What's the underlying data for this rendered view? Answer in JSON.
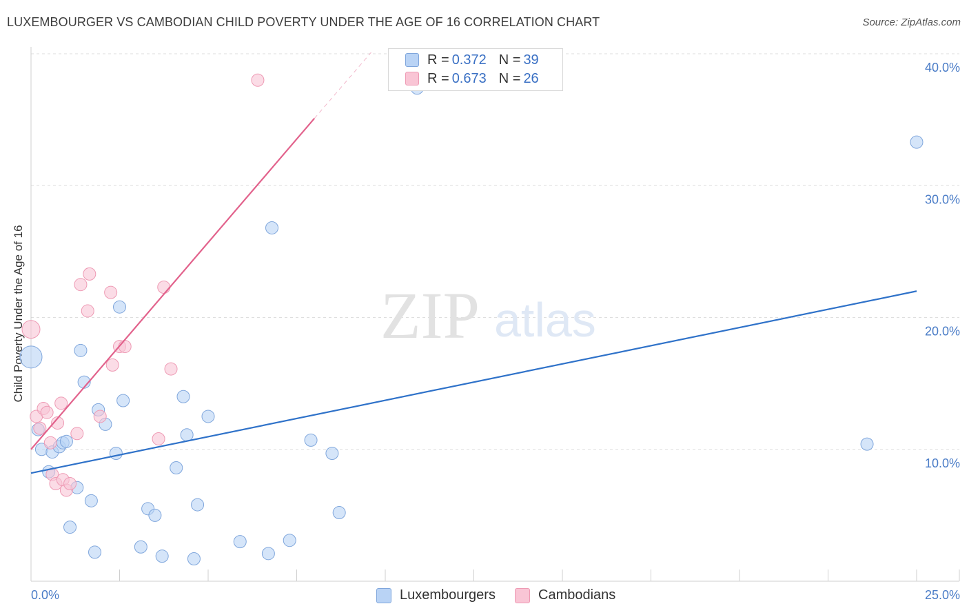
{
  "title": "LUXEMBOURGER VS CAMBODIAN CHILD POVERTY UNDER THE AGE OF 16 CORRELATION CHART",
  "source": "Source: ZipAtlas.com",
  "watermark": {
    "zip": "ZIP",
    "atlas": "atlas"
  },
  "legend": {
    "rows": [
      {
        "r_label": "R = ",
        "r_value": "0.372",
        "n_label": "N = ",
        "n_value": "39"
      },
      {
        "r_label": "R = ",
        "r_value": "0.673",
        "n_label": "N = ",
        "n_value": "26"
      }
    ]
  },
  "chart_data": {
    "type": "scatter",
    "ylabel": "Child Poverty Under the Age of 16",
    "xlim": [
      0,
      25
    ],
    "ylim": [
      0,
      40
    ],
    "y_ticks": [
      {
        "value": 10,
        "label": "10.0%"
      },
      {
        "value": 20,
        "label": "20.0%"
      },
      {
        "value": 30,
        "label": "30.0%"
      },
      {
        "value": 40,
        "label": "40.0%"
      }
    ],
    "x_tick_labels": [
      {
        "value": 0,
        "label": "0.0%"
      },
      {
        "value": 25,
        "label": "25.0%"
      }
    ],
    "grid": true,
    "colors": {
      "luxembourgers_fill": "#b9d3f5",
      "luxembourgers_stroke": "#7fa6dc",
      "luxembourgers_line": "#2f72c9",
      "cambodians_fill": "#f9c5d5",
      "cambodians_stroke": "#ee9ab4",
      "cambodians_line": "#e2628c"
    },
    "series": [
      {
        "name": "Luxembourgers",
        "trend": {
          "x0": 0,
          "y0": 8.2,
          "x1": 25,
          "y1": 22.0
        },
        "points": [
          [
            0.0,
            17.0,
            16
          ],
          [
            0.2,
            11.5,
            9
          ],
          [
            0.3,
            10.0,
            9
          ],
          [
            0.5,
            8.3,
            9
          ],
          [
            0.6,
            9.8,
            9
          ],
          [
            0.8,
            10.2,
            9
          ],
          [
            0.9,
            10.5,
            9
          ],
          [
            1.0,
            10.6,
            9
          ],
          [
            1.1,
            4.1,
            9
          ],
          [
            1.3,
            7.1,
            9
          ],
          [
            1.4,
            17.5,
            9
          ],
          [
            1.5,
            15.1,
            9
          ],
          [
            1.7,
            6.1,
            9
          ],
          [
            1.8,
            2.2,
            9
          ],
          [
            1.9,
            13.0,
            9
          ],
          [
            2.1,
            11.9,
            9
          ],
          [
            2.4,
            9.7,
            9
          ],
          [
            2.5,
            20.8,
            9
          ],
          [
            2.6,
            13.7,
            9
          ],
          [
            3.1,
            2.6,
            9
          ],
          [
            3.3,
            5.5,
            9
          ],
          [
            3.5,
            5.0,
            9
          ],
          [
            3.7,
            1.9,
            9
          ],
          [
            4.1,
            8.6,
            9
          ],
          [
            4.3,
            14.0,
            9
          ],
          [
            4.4,
            11.1,
            9
          ],
          [
            4.6,
            1.7,
            9
          ],
          [
            4.7,
            5.8,
            9
          ],
          [
            5.0,
            12.5,
            9
          ],
          [
            5.9,
            3.0,
            9
          ],
          [
            6.7,
            2.1,
            9
          ],
          [
            6.8,
            26.8,
            9
          ],
          [
            7.3,
            3.1,
            9
          ],
          [
            7.9,
            10.7,
            9
          ],
          [
            8.5,
            9.7,
            9
          ],
          [
            8.7,
            5.2,
            9
          ],
          [
            10.9,
            37.4,
            9
          ],
          [
            23.6,
            10.4,
            9
          ],
          [
            25.0,
            33.3,
            9
          ]
        ]
      },
      {
        "name": "Cambodians",
        "trend": {
          "x0": 0,
          "y0": 10.0,
          "x1": 8.0,
          "y1": 35.1
        },
        "trend_extension": {
          "x0": 8.0,
          "y0": 35.1,
          "x1": 9.6,
          "y1": 40.1
        },
        "points": [
          [
            0.0,
            19.1,
            13
          ],
          [
            0.15,
            12.5,
            9
          ],
          [
            0.25,
            11.6,
            9
          ],
          [
            0.35,
            13.1,
            9
          ],
          [
            0.45,
            12.8,
            9
          ],
          [
            0.55,
            10.5,
            9
          ],
          [
            0.6,
            8.1,
            9
          ],
          [
            0.7,
            7.4,
            9
          ],
          [
            0.75,
            12.0,
            9
          ],
          [
            0.85,
            13.5,
            9
          ],
          [
            0.9,
            7.7,
            9
          ],
          [
            1.0,
            6.9,
            9
          ],
          [
            1.1,
            7.4,
            9
          ],
          [
            1.3,
            11.2,
            9
          ],
          [
            1.4,
            22.5,
            9
          ],
          [
            1.6,
            20.5,
            9
          ],
          [
            1.65,
            23.3,
            9
          ],
          [
            1.95,
            12.5,
            9
          ],
          [
            2.25,
            21.9,
            9
          ],
          [
            2.3,
            16.4,
            9
          ],
          [
            2.5,
            17.8,
            9
          ],
          [
            2.65,
            17.8,
            9
          ],
          [
            3.6,
            10.8,
            9
          ],
          [
            3.75,
            22.3,
            9
          ],
          [
            3.95,
            16.1,
            9
          ],
          [
            6.4,
            38.0,
            9
          ]
        ]
      }
    ]
  }
}
